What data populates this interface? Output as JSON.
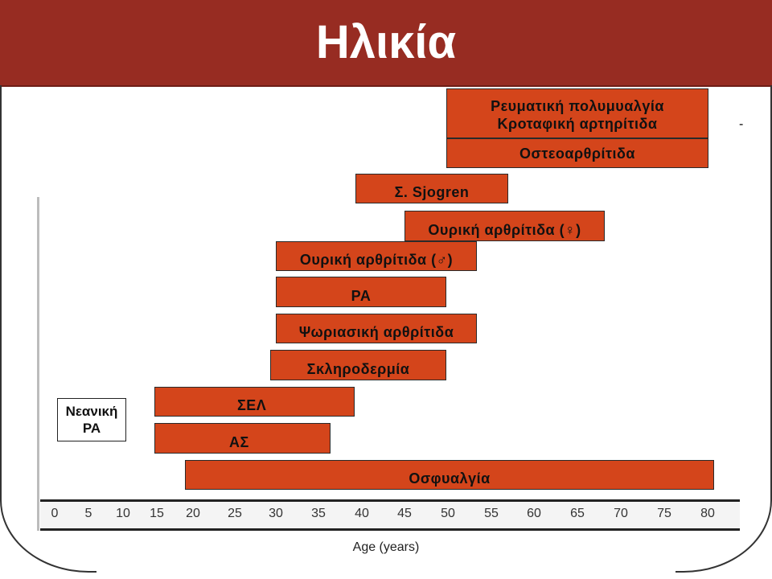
{
  "header": {
    "title": "Ηλικία"
  },
  "decoration": {
    "dash": "-"
  },
  "bars": {
    "rheum": {
      "line1": "Ρευματική πολυμυαλγία",
      "line2": "Κροταφική αρτηρίτιδα"
    },
    "osteo": "Οστεοαρθρίτιδα",
    "sjogren": "Σ. Sjogren",
    "gout_f": "Ουρική αρθρίτιδα (♀)",
    "gout_m": "Ουρική αρθρίτιδα (♂)",
    "ra": "ΡΑ",
    "psoriatic": "Ψωριασική αρθρίτιδα",
    "scleroderma": "Σκληροδερμία",
    "sle": "ΣΕΛ",
    "as": "ΑΣ",
    "lowback": "Οσφυαλγία"
  },
  "juvenile": {
    "line1": "Νεανική",
    "line2": "ΡΑ"
  },
  "axis": {
    "ticks": [
      "0",
      "5",
      "10",
      "15",
      "20",
      "25",
      "30",
      "35",
      "40",
      "45",
      "50",
      "55",
      "60",
      "65",
      "70",
      "75",
      "80"
    ],
    "label": "Age (years)"
  }
}
